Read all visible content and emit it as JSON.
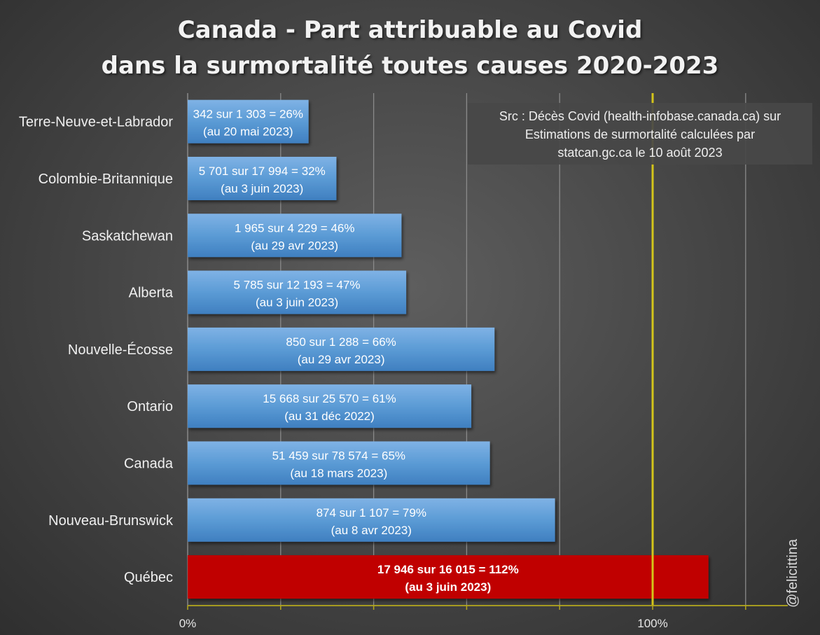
{
  "chart_data": {
    "type": "bar",
    "orientation": "horizontal",
    "title": "Canada - Part attribuable au Covid",
    "subtitle": "dans la surmortalité toutes causes 2020-2023",
    "categories": [
      "Terre-Neuve-et-Labrador",
      "Colombie-Britannique",
      "Saskatchewan",
      "Alberta",
      "Nouvelle-Écosse",
      "Ontario",
      "Canada",
      "Nouveau-Brunswick",
      "Québec"
    ],
    "values": [
      26,
      32,
      46,
      47,
      66,
      61,
      65,
      79,
      112
    ],
    "data_labels": [
      [
        "342 sur 1 303 = 26%",
        "(au 20 mai 2023)"
      ],
      [
        "5 701 sur 17 994 = 32%",
        "(au 3 juin 2023)"
      ],
      [
        "1 965 sur 4 229 = 46%",
        "(au 29 avr 2023)"
      ],
      [
        "5 785 sur 12 193 = 47%",
        "(au 3 juin 2023)"
      ],
      [
        "850 sur 1 288 = 66%",
        "(au 29 avr 2023)"
      ],
      [
        "15 668 sur 25 570 = 61%",
        "(au 31 déc 2022)"
      ],
      [
        "51 459 sur 78 574 = 65%",
        "(au 18 mars 2023)"
      ],
      [
        "874 sur 1 107 = 79%",
        "(au 8 avr 2023)"
      ],
      [
        "17 946 sur 16 015 = 112%",
        "(au 3 juin 2023)"
      ]
    ],
    "highlight": [
      false,
      false,
      false,
      false,
      false,
      false,
      false,
      false,
      true
    ],
    "xlim": [
      0,
      130
    ],
    "x_tick_labels": [
      {
        "value": 0,
        "label": "0%"
      },
      {
        "value": 100,
        "label": "100%"
      }
    ],
    "grid_values": [
      20,
      40,
      60,
      80,
      100,
      120
    ],
    "reference_line": 100,
    "grid": true,
    "colors": {
      "bar": "#5b9bd5",
      "bar_light": "#7fb2e5",
      "bar_dark": "#3f7fc0",
      "highlight_bar": "#c00000",
      "reference_line": "#d4c51a",
      "grid": "#8a8a8a",
      "axis": "#b5a81c"
    },
    "annotation": "Src : Décès Covid (health-infobase.canada.ca) sur Estimations de surmortalité calculées par statcan.gc.ca le 10 août 2023"
  },
  "source_box": {
    "line1": "Src : Décès Covid (health-infobase.canada.ca) sur",
    "line2": "Estimations de surmortalité calculées par",
    "line3": "statcan.gc.ca le 10 août 2023"
  },
  "credit": "@felicittina"
}
